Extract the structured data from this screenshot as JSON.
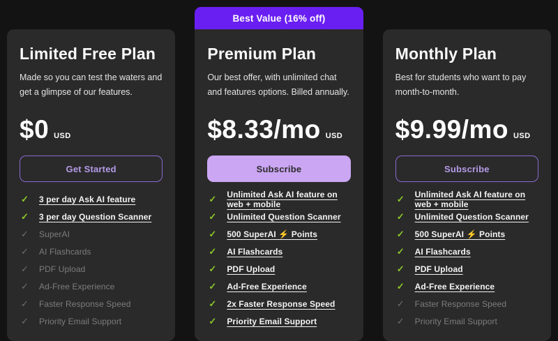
{
  "colors": {
    "page_bg": "#131313",
    "card_bg": "#2a2a2a",
    "banner_bg": "#6a1ff2",
    "filled_button_bg": "#cba6f3",
    "outline_button_border": "#8a6ad2",
    "outline_button_text": "#b49ae6",
    "check_included": "#8bc828",
    "check_excluded": "#6f6f6f"
  },
  "icons": {
    "check": "✓"
  },
  "banner": {
    "label": "Best Value (16% off)"
  },
  "plans": [
    {
      "name": "Limited Free Plan",
      "description": "Made so you can test the waters and get a glimpse of our features.",
      "price": "$0",
      "currency": "USD",
      "cta": "Get Started",
      "features": [
        {
          "label": "3 per day Ask AI feature",
          "included": true
        },
        {
          "label": "3 per day Question Scanner",
          "included": true
        },
        {
          "label": "SuperAI",
          "included": false
        },
        {
          "label": "AI Flashcards",
          "included": false
        },
        {
          "label": "PDF Upload",
          "included": false
        },
        {
          "label": "Ad-Free Experience",
          "included": false
        },
        {
          "label": "Faster Response Speed",
          "included": false
        },
        {
          "label": "Priority Email Support",
          "included": false
        }
      ]
    },
    {
      "name": "Premium Plan",
      "description": "Our best offer, with unlimited chat and features options. Billed annually.",
      "price": "$8.33/mo",
      "currency": "USD",
      "cta": "Subscribe",
      "features": [
        {
          "label": "Unlimited Ask AI feature on web + mobile",
          "included": true
        },
        {
          "label": "Unlimited Question Scanner",
          "included": true
        },
        {
          "label": "500 SuperAI ⚡ Points",
          "included": true
        },
        {
          "label": "AI Flashcards",
          "included": true
        },
        {
          "label": "PDF Upload",
          "included": true
        },
        {
          "label": "Ad-Free Experience",
          "included": true
        },
        {
          "label": "2x Faster Response Speed",
          "included": true
        },
        {
          "label": "Priority Email Support",
          "included": true
        }
      ]
    },
    {
      "name": "Monthly Plan",
      "description": "Best for students who want to pay month-to-month.",
      "price": "$9.99/mo",
      "currency": "USD",
      "cta": "Subscribe",
      "features": [
        {
          "label": "Unlimited Ask AI feature on web + mobile",
          "included": true
        },
        {
          "label": "Unlimited Question Scanner",
          "included": true
        },
        {
          "label": "500 SuperAI ⚡ Points",
          "included": true
        },
        {
          "label": "AI Flashcards",
          "included": true
        },
        {
          "label": "PDF Upload",
          "included": true
        },
        {
          "label": "Ad-Free Experience",
          "included": true
        },
        {
          "label": "Faster Response Speed",
          "included": false
        },
        {
          "label": "Priority Email Support",
          "included": false
        }
      ]
    }
  ]
}
